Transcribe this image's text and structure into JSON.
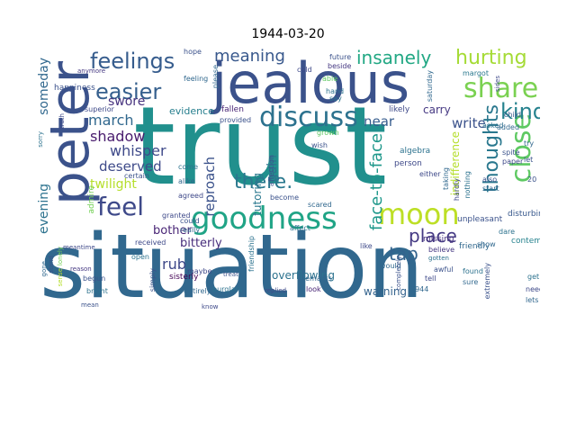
{
  "title": "1944-03-20",
  "words": {
    "trust": "trust",
    "situation": "situation",
    "jealous": "jealous",
    "peter": "peter",
    "goodness": "goodness",
    "discuss": "discuss",
    "moon": "moon",
    "feelings": "feelings",
    "easier": "easier",
    "share": "share",
    "hurting": "hurting",
    "close": "close",
    "thoughts": "thoughts",
    "kind": "kind",
    "feel": "feel",
    "there": "there.",
    "insanely": "insanely",
    "meaning": "meaning",
    "place": "place",
    "tap": "tap",
    "face_to_face": "face-to-face",
    "reproach": "reproach",
    "march": "march",
    "shadow": "shadow",
    "whisper": "whisper",
    "deserved": "deserved",
    "twilight": "twilight",
    "swore": "swore",
    "evening": "evening",
    "someday": "someday",
    "bother": "bother",
    "rub": "rub",
    "bitterly": "bitterly",
    "overflowing": "overflowing",
    "warning": "warning",
    "near": "near",
    "write": "write",
    "carry": "carry",
    "gain": "gain",
    "indifference": "indifference",
    "tutoring": "tutoring",
    "evidence": "evidence",
    "admire": "admire",
    "sisterly": "sisterly",
    "unpleasant": "unpleasant",
    "friendly": "friendly",
    "missing": "missing",
    "algebra": "algebra",
    "person": "person",
    "contempt": "contempt",
    "disturbing": "disturbing",
    "happiness": "happiness",
    "superior": "superior",
    "hope": "hope",
    "anymore": "anymore",
    "feeling": "feeling",
    "fallen": "fallen",
    "provided": "provided",
    "likely": "likely",
    "asked": "asked",
    "saturday": "saturday",
    "margot": "margot",
    "future": "future",
    "beside": "beside",
    "cold": "cold",
    "hand": "hand",
    "able": "able",
    "child": "child",
    "added": "added",
    "spite": "spite",
    "paper": "paper",
    "dare": "dare",
    "show": "show",
    "treat": "treat",
    "look": "look",
    "replied": "replied",
    "remarks": "remarks",
    "begun": "begun",
    "bright": "bright",
    "reason": "reason",
    "mean": "mean",
    "meantime": "meantime",
    "found": "found",
    "sure": "sure",
    "extremely": "extremely",
    "need": "need",
    "lets": "lets",
    "get": "get",
    "believe": "believe",
    "awful": "awful",
    "gotten": "gotten",
    "would": "would",
    "tell": "tell",
    "completely": "completely",
    "scared": "scared",
    "either": "either",
    "become": "become",
    "burglars": "burglars",
    "maybe": "maybe",
    "entirely": "entirely",
    "simply": "simply",
    "received": "received",
    "open": "open",
    "certain": "certain",
    "alike": "alike",
    "agreed": "agreed",
    "come": "come",
    "could": "could",
    "really": "really",
    "granted": "granted",
    "lonely": "lonely",
    "stand": "stand",
    "gone": "gone",
    "truth": "truth",
    "sorry": "sorry",
    "sense": "sense",
    "wish": "wish",
    "taking": "taking",
    "hardly": "hardly",
    "nothing": "nothing",
    "also": "also",
    "start": "start",
    "wanted": "wanted",
    "letter": "letter",
    "know": "know",
    "friendship": "friendship",
    "affection": "affection",
    "please": "please",
    "like": "like",
    "say": "say",
    "let": "let",
    "try": "try",
    "sides": "sides",
    "grown": "grown",
    "affect": "affect",
    "n20": "20",
    "n1944": "1944"
  }
}
